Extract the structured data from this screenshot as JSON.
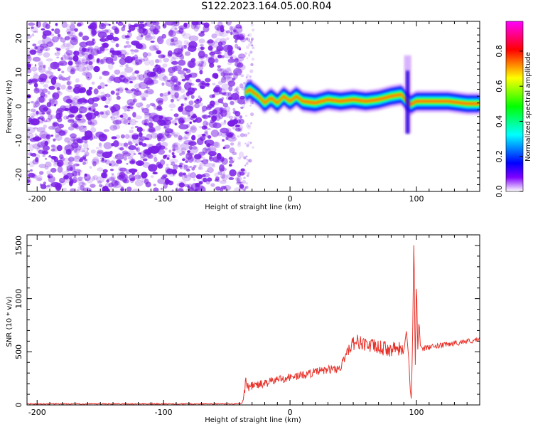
{
  "title": "S122.2023.164.05.00.R04",
  "colors": {
    "noise": "#7a1ee6",
    "snr_line": "#e8332b",
    "axis": "#000000"
  },
  "colormap": [
    "#ff00ff",
    "#ff0080",
    "#ff0000",
    "#ff8000",
    "#ffff00",
    "#80ff00",
    "#00ff00",
    "#00ff80",
    "#00ffff",
    "#0080ff",
    "#0000ff",
    "#8000ff",
    "#ffffff"
  ],
  "chart_data": [
    {
      "type": "heatmap",
      "xlabel": "Height of straight line (km)",
      "ylabel": "Frequency (Hz)",
      "xlim": [
        -208,
        150
      ],
      "ylim": [
        -25,
        25
      ],
      "xticks": [
        -200,
        -100,
        0,
        100
      ],
      "yticks": [
        -20,
        -10,
        0,
        10,
        20
      ],
      "noise_region_x": [
        -208,
        -37
      ],
      "ridge": [
        {
          "x": -35,
          "y": 4.0
        },
        {
          "x": -32,
          "y": 5.0
        },
        {
          "x": -25,
          "y": 3.0
        },
        {
          "x": -20,
          "y": 1.0
        },
        {
          "x": -15,
          "y": 2.5
        },
        {
          "x": -10,
          "y": 1.0
        },
        {
          "x": -5,
          "y": 3.0
        },
        {
          "x": 0,
          "y": 1.5
        },
        {
          "x": 5,
          "y": 3.0
        },
        {
          "x": 10,
          "y": 1.5
        },
        {
          "x": 20,
          "y": 1.0
        },
        {
          "x": 30,
          "y": 2.0
        },
        {
          "x": 40,
          "y": 1.5
        },
        {
          "x": 50,
          "y": 2.0
        },
        {
          "x": 60,
          "y": 1.5
        },
        {
          "x": 70,
          "y": 2.0
        },
        {
          "x": 80,
          "y": 3.0
        },
        {
          "x": 88,
          "y": 3.5
        },
        {
          "x": 95,
          "y": 0.5
        },
        {
          "x": 100,
          "y": 1.5
        },
        {
          "x": 110,
          "y": 1.5
        },
        {
          "x": 125,
          "y": 1.5
        },
        {
          "x": 140,
          "y": 0.8
        },
        {
          "x": 150,
          "y": 0.8
        }
      ],
      "spike": {
        "x": 93,
        "y_min": -8,
        "y_max": 15
      },
      "colorbar": {
        "label": "Normalized spectral amplitude",
        "ticks": [
          0.0,
          0.2,
          0.4,
          0.6,
          0.8
        ],
        "tick_labels": [
          "0.0",
          "0.2",
          "0.4",
          "0.6",
          "0.8"
        ],
        "range": [
          0,
          0.97
        ]
      }
    },
    {
      "type": "line",
      "xlabel": "Height of straight line (km)",
      "ylabel": "SNR (10 * v/v)",
      "xlim": [
        -208,
        150
      ],
      "ylim": [
        0,
        1600
      ],
      "xticks": [
        -200,
        -100,
        0,
        100
      ],
      "yticks": [
        0,
        500,
        1000,
        1500
      ],
      "series": [
        {
          "x": [
            -208,
            -150,
            -100,
            -60,
            -38,
            -36,
            -35,
            -33,
            -30,
            -20,
            -10,
            0,
            10,
            20,
            30,
            40,
            45,
            48,
            52,
            58,
            62,
            70,
            80,
            85,
            90,
            92,
            94,
            95,
            96,
            97,
            98,
            99,
            100,
            101,
            102,
            103,
            105,
            110,
            120,
            130,
            140,
            150
          ],
          "y": [
            10,
            10,
            10,
            10,
            10,
            120,
            250,
            160,
            180,
            200,
            240,
            260,
            280,
            310,
            330,
            350,
            500,
            560,
            600,
            580,
            560,
            540,
            520,
            530,
            500,
            700,
            420,
            150,
            50,
            700,
            1600,
            300,
            1200,
            500,
            800,
            560,
            530,
            540,
            560,
            580,
            600,
            610
          ]
        }
      ]
    }
  ]
}
